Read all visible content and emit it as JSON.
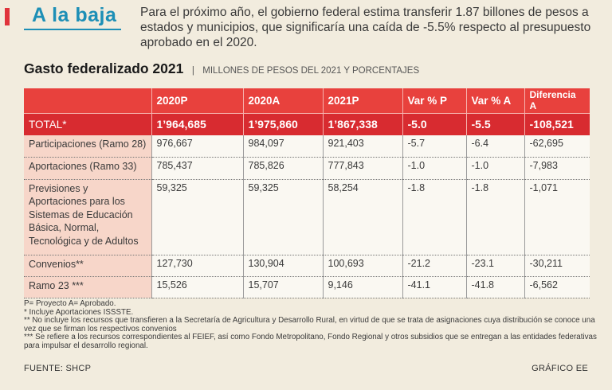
{
  "header": {
    "headline": "A la baja",
    "lead": "Para el próximo año, el gobierno federal estima transferir 1.87 billones de pesos a estados y municipios, que significaría una caída de -5.5% respecto al presupuesto aprobado en el 2020.",
    "accent_color": "#e0343c",
    "headline_color": "#1d8fb6"
  },
  "title": "Gasto federalizado 2021",
  "separator": "|",
  "subtitle": "MILLONES DE PESOS DEL 2021 Y PORCENTAJES",
  "table": {
    "columns": [
      "",
      "2020P",
      "2020A",
      "2021P",
      "Var % P",
      "Var % A",
      "Diferencia A"
    ],
    "total": [
      "TOTAL*",
      "1’964,685",
      "1’975,860",
      "1’867,338",
      "-5.0",
      "-5.5",
      "-108,521"
    ],
    "rows": [
      [
        "Participaciones (Ramo 28)",
        "976,667",
        "984,097",
        "921,403",
        "-5.7",
        "-6.4",
        "-62,695"
      ],
      [
        "Aportaciones (Ramo 33)",
        "785,437",
        "785,826",
        "777,843",
        "-1.0",
        "-1.0",
        "-7,983"
      ],
      [
        "Previsiones y Aportaciones para los Sistemas de Educación Básica, Normal, Tecnológica y de Adultos",
        "59,325",
        "59,325",
        "58,254",
        "-1.8",
        "-1.8",
        "-1,071"
      ],
      [
        "Convenios**",
        "127,730",
        "130,904",
        "100,693",
        "-21.2",
        "-23.1",
        "-30,211"
      ],
      [
        "Ramo 23 ***",
        "15,526",
        "15,707",
        "9,146",
        "-41.1",
        "-41.8",
        "-6,562"
      ]
    ]
  },
  "notes": [
    "P= Proyecto A= Aprobado.",
    "* Incluye Aportaciones ISSSTE.",
    "** No incluye los recursos que transfieren a la Secretaría de Agricultura y Desarrollo Rural, en virtud de que se trata de asignaciones cuya distribución se conoce una vez que se firman los respectivos convenios",
    "*** Se refiere a los recursos correspondientes al FEIEF, así como Fondo Metropolitano, Fondo Regional y otros subsidios que se entregan a las entidades federativas para impulsar el desarrollo regional."
  ],
  "source": "FUENTE: SHCP",
  "credit": "GRÁFICO EE"
}
